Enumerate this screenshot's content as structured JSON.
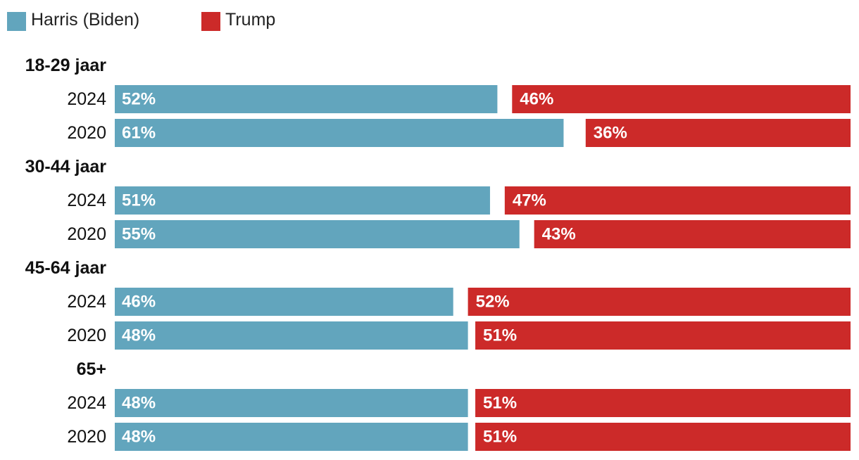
{
  "colors": {
    "harris": "#62a5bd",
    "trump": "#cc2a29",
    "text": "#111111",
    "bar_label": "#ffffff"
  },
  "legend": {
    "harris_label": "Harris (Biden)",
    "trump_label": "Trump"
  },
  "chart_data": {
    "type": "bar",
    "orientation": "horizontal",
    "stacked": "diverging-split",
    "title": "",
    "xlabel": "",
    "ylabel": "",
    "xlim": [
      0,
      100
    ],
    "legend_position": "top-left",
    "series_names": [
      "Harris (Biden)",
      "Trump"
    ],
    "groups": [
      {
        "label": "18-29 jaar",
        "rows": [
          {
            "year": "2024",
            "harris": 52,
            "trump": 46,
            "harris_label": "52%",
            "trump_label": "46%"
          },
          {
            "year": "2020",
            "harris": 61,
            "trump": 36,
            "harris_label": "61%",
            "trump_label": "36%"
          }
        ]
      },
      {
        "label": "30-44 jaar",
        "rows": [
          {
            "year": "2024",
            "harris": 51,
            "trump": 47,
            "harris_label": "51%",
            "trump_label": "47%"
          },
          {
            "year": "2020",
            "harris": 55,
            "trump": 43,
            "harris_label": "55%",
            "trump_label": "43%"
          }
        ]
      },
      {
        "label": "45-64 jaar",
        "rows": [
          {
            "year": "2024",
            "harris": 46,
            "trump": 52,
            "harris_label": "46%",
            "trump_label": "52%"
          },
          {
            "year": "2020",
            "harris": 48,
            "trump": 51,
            "harris_label": "48%",
            "trump_label": "51%"
          }
        ]
      },
      {
        "label": "65+",
        "rows": [
          {
            "year": "2024",
            "harris": 48,
            "trump": 51,
            "harris_label": "48%",
            "trump_label": "51%"
          },
          {
            "year": "2020",
            "harris": 48,
            "trump": 51,
            "harris_label": "48%",
            "trump_label": "51%"
          }
        ]
      }
    ]
  }
}
